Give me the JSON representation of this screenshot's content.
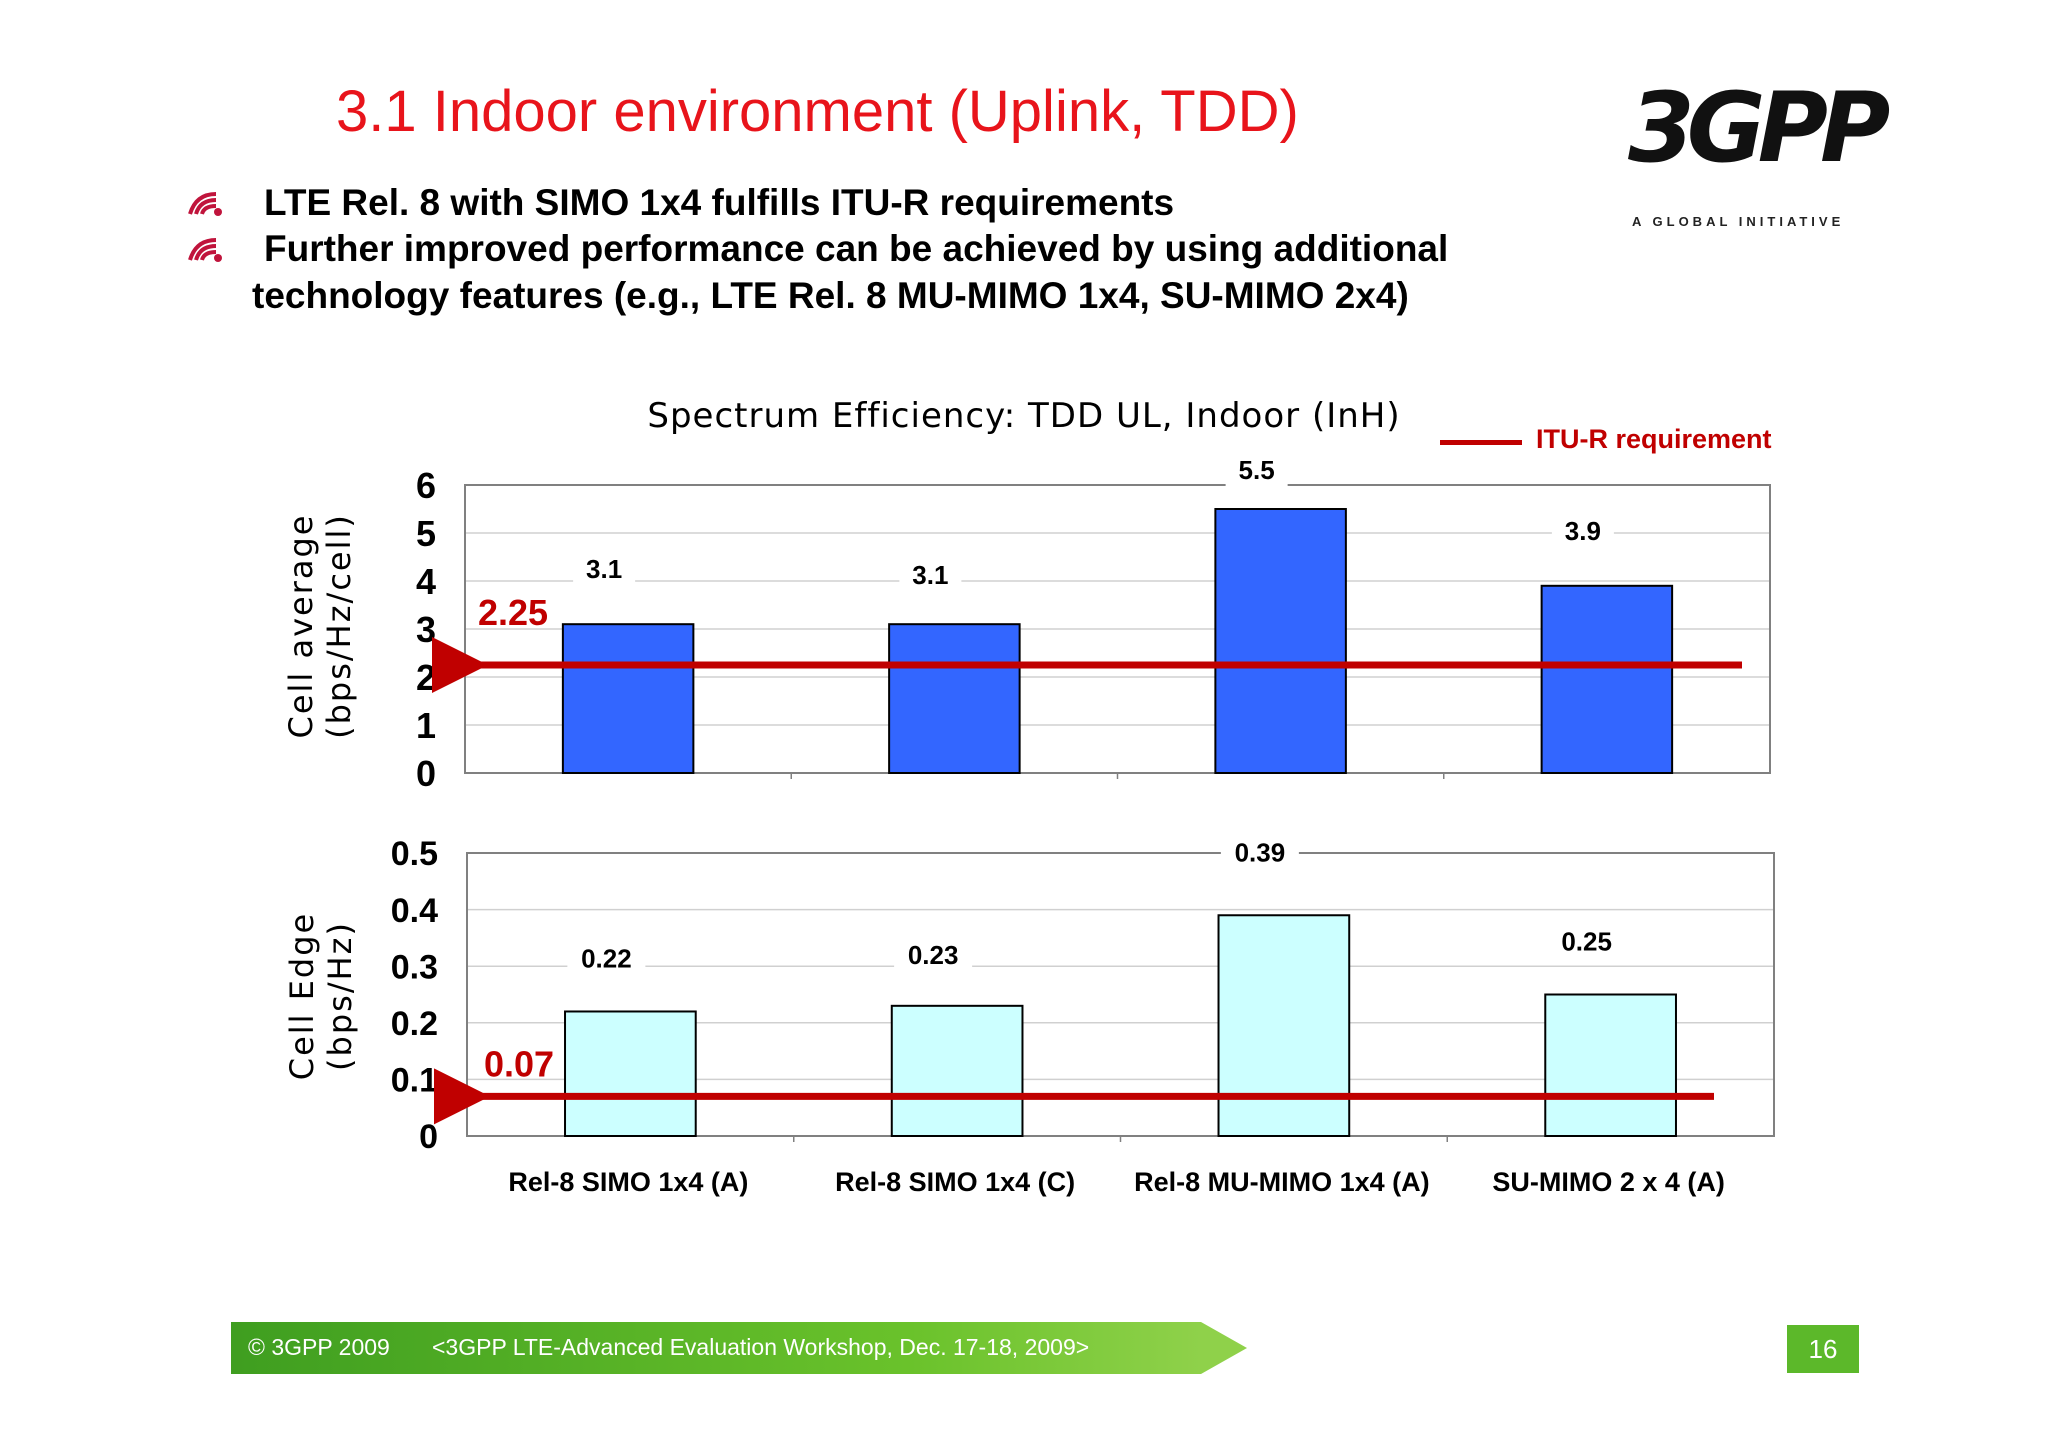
{
  "slide": {
    "title": "3.1 Indoor environment (Uplink, TDD)",
    "bullets": [
      "LTE Rel. 8 with SIMO 1x4 fulfills ITU-R requirements",
      "Further improved performance can be achieved by using additional",
      "technology features  (e.g., LTE Rel. 8 MU-MIMO 1x4, SU-MIMO 2x4)"
    ]
  },
  "logo": {
    "text": "3GPP",
    "tagline": "A GLOBAL INITIATIVE"
  },
  "footer": {
    "copyright": "© 3GPP 2009",
    "event": "<3GPP LTE-Advanced Evaluation Workshop, Dec. 17-18, 2009>",
    "page": "16"
  },
  "colors": {
    "title": "#e8141b",
    "requirement": "#c00000",
    "bar_top": "#3366ff",
    "bar_bottom": "#ccffff",
    "footer": "#5cb82a"
  },
  "chart_data": [
    {
      "type": "bar",
      "title": "Spectrum Efficiency: TDD UL, Indoor (InH)",
      "legend": [
        "ITU-R requirement"
      ],
      "legend_placement": "top-right",
      "categories": [
        "Rel-8 SIMO 1x4 (A)",
        "Rel-8 SIMO 1x4 (C)",
        "Rel-8 MU-MIMO 1x4 (A)",
        "SU-MIMO 2 x 4 (A)"
      ],
      "ylabel": [
        "Cell average",
        "(bps/Hz/cell)"
      ],
      "values": [
        3.1,
        3.1,
        5.5,
        3.9
      ],
      "value_labels": [
        "3.1",
        "3.1",
        "5.5",
        "3.9"
      ],
      "ylim": [
        0,
        6
      ],
      "yticks": [
        "0",
        "1",
        "2",
        "3",
        "4",
        "5",
        "6"
      ],
      "requirement": 2.25,
      "requirement_label": "2.25",
      "grid": true
    },
    {
      "type": "bar",
      "categories": [
        "Rel-8 SIMO 1x4 (A)",
        "Rel-8 SIMO 1x4 (C)",
        "Rel-8 MU-MIMO 1x4 (A)",
        "SU-MIMO 2 x 4 (A)"
      ],
      "ylabel": [
        "Cell Edge",
        "(bps/Hz)"
      ],
      "values": [
        0.22,
        0.23,
        0.39,
        0.25
      ],
      "value_labels": [
        "0.22",
        "0.23",
        "0.39",
        "0.25"
      ],
      "ylim": [
        0,
        0.5
      ],
      "yticks": [
        "0",
        "0.1",
        "0.2",
        "0.3",
        "0.4",
        "0.5"
      ],
      "requirement": 0.07,
      "requirement_label": "0.07",
      "grid": true
    }
  ]
}
